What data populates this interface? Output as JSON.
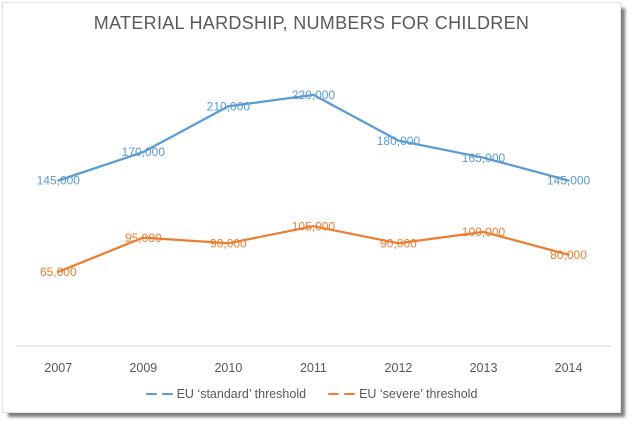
{
  "title": "MATERIAL HARDSHIP, NUMBERS FOR CHILDREN",
  "colors": {
    "standard_series": "#5B9BD5",
    "severe_series": "#ED7D31",
    "title_text": "#595959",
    "axis_text": "#595959",
    "axis_line": "#D9D9D9"
  },
  "chart_data": {
    "type": "line",
    "title": "MATERIAL HARDSHIP, NUMBERS FOR CHILDREN",
    "xlabel": "",
    "ylabel": "",
    "categories": [
      "2007",
      "2009",
      "2010",
      "2011",
      "2012",
      "2013",
      "2014"
    ],
    "series": [
      {
        "name": "EU ‘standard’ threshold",
        "color": "#5B9BD5",
        "values": [
          145000,
          170000,
          210000,
          220000,
          180000,
          165000,
          145000
        ],
        "labels": [
          "145,000",
          "170,000",
          "210,000",
          "220,000",
          "180,000",
          "165,000",
          "145,000"
        ]
      },
      {
        "name": "EU ‘severe’ threshold",
        "color": "#ED7D31",
        "values": [
          65000,
          95000,
          90000,
          105000,
          90000,
          100000,
          80000
        ],
        "labels": [
          "65,000",
          "95,000",
          "90,000",
          "105,000",
          "90,000",
          "100,000",
          "80,000"
        ]
      }
    ],
    "ylim": [
      0,
      250000
    ],
    "grid": false,
    "y_axis_visible": false,
    "data_label_position": "center",
    "legend_position": "bottom-center"
  },
  "legend": {
    "items": [
      {
        "label": "EU ‘standard’ threshold",
        "color": "#5B9BD5"
      },
      {
        "label": "EU ‘severe’ threshold",
        "color": "#ED7D31"
      }
    ]
  }
}
